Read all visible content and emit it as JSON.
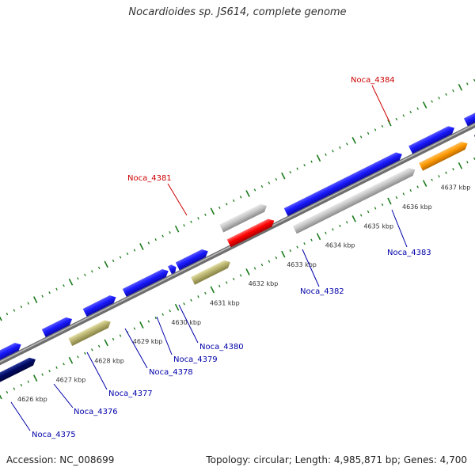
{
  "title": "Nocardioides sp. JS614, complete genome",
  "footer": {
    "accession": "Accession: NC_008699",
    "summary": "Topology: circular; Length: 4,985,871 bp; Genes: 4,700"
  },
  "colors": {
    "plus_strand_cds": "#1a1aff",
    "minus_strand_cds_dark": "#000a66",
    "hypothetical": "#b0b0b0",
    "red_feature": "#ff0000",
    "orange_feature": "#ff9900",
    "olive_feature": "#b8b36e",
    "cyan_feature": "#00c8ff",
    "backbone": "#888888",
    "tick": "#1a7a1a",
    "label_plus": "#0000aa",
    "label_red": "#cc0000"
  },
  "scale": {
    "unit": "kbp",
    "ticks_kbp": [
      4626,
      4627,
      4628,
      4629,
      4630,
      4631,
      4632,
      4633,
      4634,
      4635,
      4636,
      4637
    ]
  },
  "genes": [
    {
      "label": "Noca_4375",
      "color": "#0000aa"
    },
    {
      "label": "Noca_4376",
      "color": "#0000aa"
    },
    {
      "label": "Noca_4377",
      "color": "#0000aa"
    },
    {
      "label": "Noca_4378",
      "color": "#0000aa"
    },
    {
      "label": "Noca_4379",
      "color": "#0000aa"
    },
    {
      "label": "Noca_4380",
      "color": "#0000aa"
    },
    {
      "label": "Noca_4381",
      "color": "#cc0000"
    },
    {
      "label": "Noca_4382",
      "color": "#0000aa"
    },
    {
      "label": "Noca_4383",
      "color": "#0000aa"
    },
    {
      "label": "Noca_4384",
      "color": "#cc0000"
    }
  ]
}
